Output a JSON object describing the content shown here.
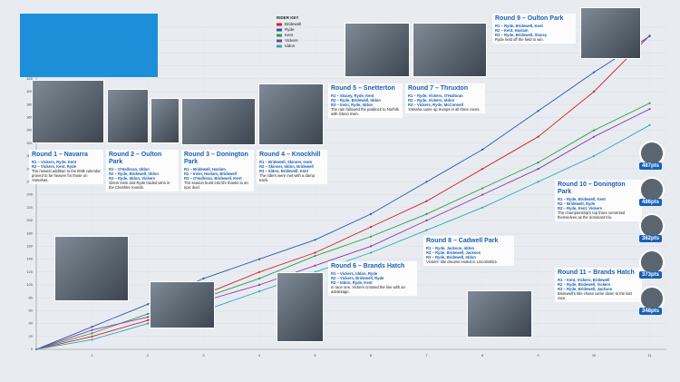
{
  "chart_data": {
    "type": "line",
    "legend_title": "RIDER KEY",
    "x": [
      0,
      1,
      2,
      3,
      4,
      5,
      6,
      7,
      8,
      9,
      10,
      11
    ],
    "xlim": [
      0,
      11.3
    ],
    "xticks": [
      1,
      2,
      3,
      4,
      5,
      6,
      7,
      8,
      9,
      10,
      11
    ],
    "ylim": [
      0,
      500
    ],
    "yticks": [
      0,
      20,
      40,
      60,
      80,
      100,
      120,
      140,
      160,
      180,
      200,
      220,
      240,
      260,
      280,
      300,
      320,
      340,
      360,
      380,
      400,
      420,
      440,
      460,
      480,
      500
    ],
    "grid": true,
    "series": [
      {
        "name": "Bridewell",
        "color": "#d6202a",
        "values": [
          0,
          20,
          45,
          85,
          120,
          150,
          190,
          230,
          280,
          330,
          400,
          487
        ],
        "label": "487pts"
      },
      {
        "name": "Ryde",
        "color": "#2a5aa8",
        "values": [
          0,
          35,
          70,
          110,
          140,
          170,
          210,
          260,
          310,
          370,
          430,
          486
        ],
        "label": "486pts"
      },
      {
        "name": "Kent",
        "color": "#2e9b4a",
        "values": [
          0,
          25,
          55,
          80,
          110,
          145,
          175,
          210,
          250,
          290,
          340,
          382
        ],
        "label": "382pts"
      },
      {
        "name": "Vickers",
        "color": "#8c3b9e",
        "values": [
          0,
          30,
          50,
          75,
          100,
          130,
          160,
          200,
          240,
          280,
          330,
          373
        ],
        "label": "373pts"
      },
      {
        "name": "Iddon",
        "color": "#2fa8b8",
        "values": [
          0,
          15,
          40,
          60,
          90,
          120,
          150,
          185,
          220,
          260,
          300,
          348
        ],
        "label": "348pts"
      }
    ]
  },
  "panels": [
    {
      "title": "Round 1 – Navarra",
      "lines": [
        "R1 – Vickers, Ryde, Kent",
        "R2 – Vickers, Kent, Ryde",
        "The newest addition to the BSB calendar proved to be heaven for those on Yamahas."
      ]
    },
    {
      "title": "Round 2 – Oulton Park",
      "lines": [
        "R1 – O'Halloran, Iddon",
        "R2 – Ryde, Bridewell, Iddon",
        "R3 – Ryde, Iddon, Vickers",
        "Glenn Irwin and Ryde traded wins in the Cheshire rounds."
      ]
    },
    {
      "title": "Round 3 – Donington Park",
      "lines": [
        "R1 – Bridewell, Haslam",
        "R2 – Irwin, Haslam, Bridewell",
        "R3 – O'Halloran, Bridewell, Kent",
        "The season burst into life thanks to an epic duel."
      ]
    },
    {
      "title": "Round 4 – Knockhill",
      "lines": [
        "R1 – Bridewell, Skinner, Irwin",
        "R2 – Skinner, Iddon, Bridewell",
        "R3 – Iddon, Bridewell, Kent",
        "The riders were met with a damp track."
      ]
    },
    {
      "title": "Round 5 – Snetterton",
      "lines": [
        "R1 – Stacey, Ryde, Kent",
        "R2 – Ryde, Bridewell, Iddon",
        "R3 – Irwin, Ryde, Iddon",
        "The rain followed the paddock to Norfolk with Glenn Irwin."
      ]
    },
    {
      "title": "Round 7 – Thruxton",
      "lines": [
        "R1 – Ryde, Vickers, O'Halloran",
        "R2 – Ryde, Vickers, Iddon",
        "R3 – Vickers, Ryde, McConnell",
        "Yamaha came up trumps in all three races."
      ]
    },
    {
      "title": "Round 9 – Oulton Park",
      "lines": [
        "R1 – Ryde, Bridewell, Kent",
        "R2 – Kent, Haslam",
        "R3 – Ryde, Bridewell, Stacey",
        "Ryde held off the field to win."
      ]
    },
    {
      "title": "Round 6 – Brands Hatch",
      "lines": [
        "R1 – Vickers, Iddon, Ryde",
        "R2 – Vickers, Bridewell, Ryde",
        "R3 – Iddon, Ryde, Kent",
        "In race one, Vickers crossed the line with an advantage."
      ]
    },
    {
      "title": "Round 8 – Cadwell Park",
      "lines": [
        "R1 – Ryde, Jackson, Iddon",
        "R2 – Ryde, Bridewell, Jackson",
        "R3 – Ryde, Bridewell, Iddon",
        "Vickers' title dreams ended in Lincolnshire."
      ]
    },
    {
      "title": "Round 10 – Donington Park",
      "lines": [
        "R1 – Ryde, Bridewell, Kent",
        "R2 – Bridewell, Ryde",
        "R3 – Ryde, Kent, Vickers",
        "The championship's top three cemented themselves as the dominant trio."
      ]
    },
    {
      "title": "Round 11 – Brands Hatch",
      "lines": [
        "R1 – Kent, Vickers, Bridewell",
        "R2 – Ryde, Bridewell, Vickers",
        "R3 – Ryde, Bridewell, Jackson",
        "Bridewell's title chase came down to the last race."
      ]
    }
  ]
}
